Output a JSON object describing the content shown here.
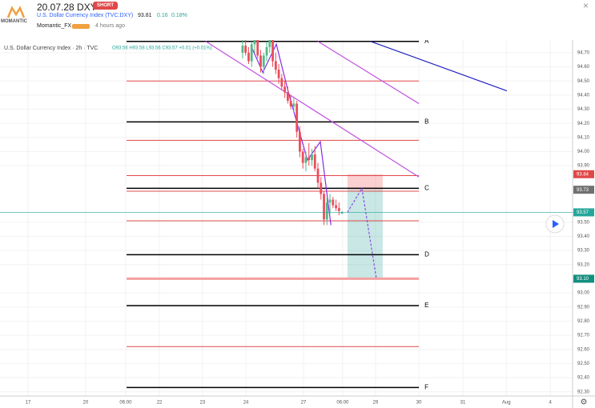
{
  "header": {
    "logo": "MOMANTIC",
    "title": "20.07.28 DXY",
    "badge": "SHORT",
    "symbol": "U.S. Dollar Currency Index (TVC:DXY)",
    "price": 93.81,
    "change": 0.16,
    "change_pct": "0.18%",
    "author": "Momantic_FX",
    "time": "4 hours ago"
  },
  "chart_data": {
    "type": "candlestick",
    "title": "U.S. Dollar Currency Index · 2h · TVC",
    "ohlc_text": "O93.56 H93.58 L93.56 C93.57 +0.01 (+0.01%)",
    "up_color": "#53b987",
    "down_color": "#eb4d5c",
    "grid": true,
    "xlim": [
      0,
      190
    ],
    "ylim": [
      92.27,
      94.79
    ],
    "xticks": [
      {
        "value": 9.3,
        "label": "17"
      },
      {
        "value": 28.4,
        "label": "20"
      },
      {
        "value": 41.7,
        "label": "06:00"
      },
      {
        "value": 52.9,
        "label": "22"
      },
      {
        "value": 67.2,
        "label": "23"
      },
      {
        "value": 81.6,
        "label": "24"
      },
      {
        "value": 100.7,
        "label": "27"
      },
      {
        "value": 113.7,
        "label": "06:00"
      },
      {
        "value": 124.6,
        "label": "29"
      },
      {
        "value": 139,
        "label": "30"
      },
      {
        "value": 153.6,
        "label": "31"
      },
      {
        "value": 168,
        "label": "Aug"
      },
      {
        "value": 182.6,
        "label": "4"
      }
    ],
    "yticks": [
      {
        "value": 92.3,
        "label": "92.30"
      },
      {
        "value": 92.4,
        "label": "92.40"
      },
      {
        "value": 92.5,
        "label": "92.50"
      },
      {
        "value": 92.6,
        "label": "92.60"
      },
      {
        "value": 92.7,
        "label": "92.70"
      },
      {
        "value": 92.8,
        "label": "92.80"
      },
      {
        "value": 92.9,
        "label": "92.90"
      },
      {
        "value": 93,
        "label": "93.00"
      },
      {
        "value": 93.2,
        "label": "93.20"
      },
      {
        "value": 93.3,
        "label": "93.30"
      },
      {
        "value": 93.4,
        "label": "93.40"
      },
      {
        "value": 93.5,
        "label": "93.50"
      },
      {
        "value": 93.9,
        "label": "93.90"
      },
      {
        "value": 94,
        "label": "94.00"
      },
      {
        "value": 94.1,
        "label": "94.10"
      },
      {
        "value": 94.2,
        "label": "94.20"
      },
      {
        "value": 94.3,
        "label": "94.30"
      },
      {
        "value": 94.4,
        "label": "94.40"
      },
      {
        "value": 94.5,
        "label": "94.50"
      },
      {
        "value": 94.6,
        "label": "94.60"
      },
      {
        "value": 94.7,
        "label": "94.70"
      }
    ],
    "candles": {
      "x": [
        80.5,
        81.5,
        82.5,
        83.5,
        84.5,
        85.5,
        86.5,
        87.5,
        88.5,
        89.5,
        90.5,
        91.5,
        92.5,
        93.5,
        94.5,
        95.5,
        96.5,
        97.5,
        98.5,
        99.5,
        100.5,
        101.5,
        102.5,
        103.5,
        104.5,
        105.5,
        106.5,
        107.5,
        108.5,
        109.5,
        110.5,
        111.5,
        112.5,
        113.5
      ],
      "open": [
        94.7,
        94.75,
        94.7,
        94.64,
        94.76,
        94.8,
        94.68,
        94.6,
        94.68,
        94.74,
        94.82,
        94.64,
        94.58,
        94.52,
        94.46,
        94.42,
        94.36,
        94.32,
        94.34,
        94.14,
        94,
        93.92,
        93.96,
        93.94,
        93.98,
        93.88,
        93.78,
        93.7,
        93.52,
        93.64,
        93.66,
        93.62,
        93.6,
        93.56
      ],
      "high": [
        94.8,
        94.82,
        94.74,
        94.78,
        94.85,
        94.84,
        94.72,
        94.7,
        94.78,
        94.86,
        94.85,
        94.7,
        94.62,
        94.55,
        94.5,
        94.46,
        94.4,
        94.38,
        94.36,
        94.18,
        94.02,
        94,
        94.06,
        94.02,
        94.04,
        93.92,
        93.82,
        93.72,
        93.68,
        93.7,
        93.68,
        93.66,
        93.64,
        93.58
      ],
      "low": [
        94.66,
        94.68,
        94.62,
        94.6,
        94.7,
        94.66,
        94.56,
        94.55,
        94.64,
        94.7,
        94.6,
        94.55,
        94.48,
        94.44,
        94.38,
        94.34,
        94.3,
        94.28,
        94.1,
        93.96,
        93.88,
        93.86,
        93.9,
        93.9,
        93.86,
        93.74,
        93.66,
        93.48,
        93.48,
        93.56,
        93.6,
        93.58,
        93.55,
        93.56
      ],
      "close": [
        94.75,
        94.7,
        94.64,
        94.76,
        94.8,
        94.68,
        94.6,
        94.68,
        94.74,
        94.82,
        94.64,
        94.58,
        94.52,
        94.46,
        94.42,
        94.36,
        94.32,
        94.34,
        94.14,
        94,
        93.92,
        93.96,
        93.94,
        93.98,
        93.88,
        93.78,
        93.7,
        93.52,
        93.64,
        93.66,
        93.62,
        93.6,
        93.58,
        93.57
      ]
    },
    "levels": [
      {
        "label": "A",
        "value": 94.78
      },
      {
        "label": "B",
        "value": 94.21
      },
      {
        "label": "C",
        "value": 93.74
      },
      {
        "label": "D",
        "value": 93.27
      },
      {
        "label": "E",
        "value": 92.91
      },
      {
        "label": "F",
        "value": 92.33
      }
    ],
    "level_color": "#000000",
    "level_x": [
      42,
      139
    ],
    "lines": [
      {
        "value": 94.5,
        "color": "#e04848"
      },
      {
        "value": 94.08,
        "color": "#e04848"
      },
      {
        "value": 93.83,
        "color": "#e04848"
      },
      {
        "value": 93.72,
        "color": "#e04848"
      },
      {
        "value": 93.51,
        "color": "#e04848"
      },
      {
        "value": 93.1,
        "color": "#f4a0a0"
      },
      {
        "value": 92.62,
        "color": "#e04848"
      }
    ],
    "trendlines": [
      {
        "x": [
          68.3,
          139
        ],
        "y": [
          94.78,
          93.82
        ],
        "color": "#c050e0"
      },
      {
        "x": [
          105.5,
          139
        ],
        "y": [
          94.78,
          94.34
        ],
        "color": "#c050e0"
      },
      {
        "x": [
          123,
          168.2
        ],
        "y": [
          94.78,
          94.43
        ],
        "color": "#2020c0"
      },
      {
        "x": [
          83.7,
          87.2,
          91.7,
          95.7,
          102,
          106.3,
          109.8
        ],
        "y": [
          94.73,
          94.56,
          94.76,
          94.42,
          93.94,
          94.07,
          93.48
        ],
        "color": "#8a2be2"
      }
    ],
    "position": {
      "x": [
        115.3,
        127
      ],
      "stop": 93.84,
      "entry": 93.73,
      "target": 93.1
    },
    "projection": {
      "x": [
        115.3,
        120.1,
        124.9
      ],
      "y": [
        93.57,
        93.74,
        93.1
      ],
      "color": "#8a50e0"
    },
    "last_price": {
      "value": 93.57,
      "color": "#26a69a"
    },
    "price_tags": [
      {
        "value": 93.84,
        "color": "#e04848"
      },
      {
        "value": 93.73,
        "color": "#707070"
      },
      {
        "value": {
          "value": 93.1,
          "label": "93.10"
        },
        "color": "#138f7f"
      }
    ]
  }
}
